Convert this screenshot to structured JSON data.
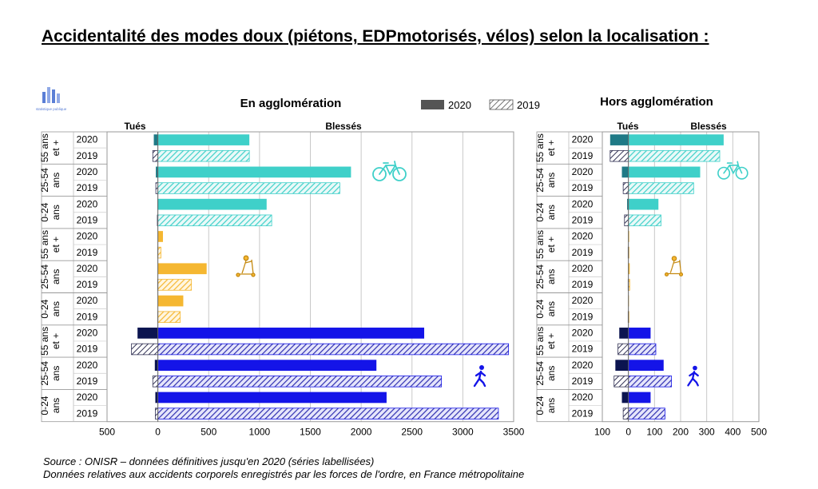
{
  "title": "Accidentalité des modes doux (piétons, EDPmotorisés, vélos) selon la localisation :",
  "logo_text": "statistique publique",
  "legend": [
    {
      "label": "2020",
      "style": "solid"
    },
    {
      "label": "2019",
      "style": "hatched"
    }
  ],
  "groups": [
    {
      "mode": "velo",
      "age": [
        "55 ans",
        "et +"
      ]
    },
    {
      "mode": "velo",
      "age": [
        "25-54",
        "ans"
      ]
    },
    {
      "mode": "velo",
      "age": [
        "0-24",
        "ans"
      ]
    },
    {
      "mode": "edp",
      "age": [
        "55 ans",
        "et +"
      ]
    },
    {
      "mode": "edp",
      "age": [
        "25-54",
        "ans"
      ]
    },
    {
      "mode": "edp",
      "age": [
        "0-24",
        "ans"
      ]
    },
    {
      "mode": "pieton",
      "age": [
        "55 ans",
        "et +"
      ]
    },
    {
      "mode": "pieton",
      "age": [
        "25-54",
        "ans"
      ]
    },
    {
      "mode": "pieton",
      "age": [
        "0-24",
        "ans"
      ]
    }
  ],
  "colors": {
    "velo": "#3fd0c9",
    "velo_dark": "#1f7a86",
    "edp": "#f5b731",
    "edp_dark": "#c58a12",
    "pieton": "#1414e8",
    "pieton_dark": "#0b1450",
    "hatch": "#4a4a8a",
    "grid": "#c8c8c8"
  },
  "icons": {
    "velo": "bicycle-icon",
    "edp": "scooter-icon",
    "pieton": "pedestrian-icon"
  },
  "chart_data": [
    {
      "type": "bar",
      "orientation": "horizontal",
      "title": "En agglomération",
      "left_label": "Tués",
      "right_label": "Blessés",
      "xlim": [
        -500,
        3500
      ],
      "xticks": [
        -500,
        0,
        500,
        1000,
        1500,
        2000,
        2500,
        3000,
        3500
      ],
      "tick_labels": [
        "500",
        "0",
        "500",
        "1000",
        "1500",
        "2000",
        "2500",
        "3000",
        "3500"
      ],
      "rows": [
        {
          "year": "2020",
          "killed": 40,
          "injured": 900
        },
        {
          "year": "2019",
          "killed": 50,
          "injured": 900
        },
        {
          "year": "2020",
          "killed": 20,
          "injured": 1900
        },
        {
          "year": "2019",
          "killed": 20,
          "injured": 1790
        },
        {
          "year": "2020",
          "killed": 5,
          "injured": 1070
        },
        {
          "year": "2019",
          "killed": 5,
          "injured": 1120
        },
        {
          "year": "2020",
          "killed": 1,
          "injured": 50
        },
        {
          "year": "2019",
          "killed": 1,
          "injured": 30
        },
        {
          "year": "2020",
          "killed": 2,
          "injured": 480
        },
        {
          "year": "2019",
          "killed": 2,
          "injured": 330
        },
        {
          "year": "2020",
          "killed": 1,
          "injured": 250
        },
        {
          "year": "2019",
          "killed": 1,
          "injured": 220
        },
        {
          "year": "2020",
          "killed": 200,
          "injured": 2620
        },
        {
          "year": "2019",
          "killed": 260,
          "injured": 3450
        },
        {
          "year": "2020",
          "killed": 30,
          "injured": 2150
        },
        {
          "year": "2019",
          "killed": 50,
          "injured": 2790
        },
        {
          "year": "2020",
          "killed": 25,
          "injured": 2250
        },
        {
          "year": "2019",
          "killed": 25,
          "injured": 3350
        }
      ]
    },
    {
      "type": "bar",
      "orientation": "horizontal",
      "title": "Hors agglomération",
      "left_label": "Tués",
      "right_label": "Blessés",
      "xlim": [
        -100,
        500
      ],
      "xticks": [
        -100,
        0,
        100,
        200,
        300,
        400,
        500
      ],
      "tick_labels": [
        "100",
        "0",
        "100",
        "200",
        "300",
        "400",
        "500"
      ],
      "rows": [
        {
          "year": "2020",
          "killed": 70,
          "injured": 365
        },
        {
          "year": "2019",
          "killed": 70,
          "injured": 350
        },
        {
          "year": "2020",
          "killed": 25,
          "injured": 275
        },
        {
          "year": "2019",
          "killed": 20,
          "injured": 250
        },
        {
          "year": "2020",
          "killed": 5,
          "injured": 115
        },
        {
          "year": "2019",
          "killed": 15,
          "injured": 125
        },
        {
          "year": "2020",
          "killed": 1,
          "injured": 3
        },
        {
          "year": "2019",
          "killed": 1,
          "injured": 2
        },
        {
          "year": "2020",
          "killed": 1,
          "injured": 5
        },
        {
          "year": "2019",
          "killed": 1,
          "injured": 5
        },
        {
          "year": "2020",
          "killed": 1,
          "injured": 2
        },
        {
          "year": "2019",
          "killed": 1,
          "injured": 2
        },
        {
          "year": "2020",
          "killed": 35,
          "injured": 85
        },
        {
          "year": "2019",
          "killed": 40,
          "injured": 105
        },
        {
          "year": "2020",
          "killed": 50,
          "injured": 135
        },
        {
          "year": "2019",
          "killed": 55,
          "injured": 165
        },
        {
          "year": "2020",
          "killed": 25,
          "injured": 85
        },
        {
          "year": "2019",
          "killed": 20,
          "injured": 140
        }
      ]
    }
  ],
  "source": {
    "line1": "Source : ONISR – données définitives jusqu'en 2020 (séries labellisées)",
    "line2": "Données relatives aux accidents corporels enregistrés par les forces de l'ordre, en France métropolitaine"
  }
}
